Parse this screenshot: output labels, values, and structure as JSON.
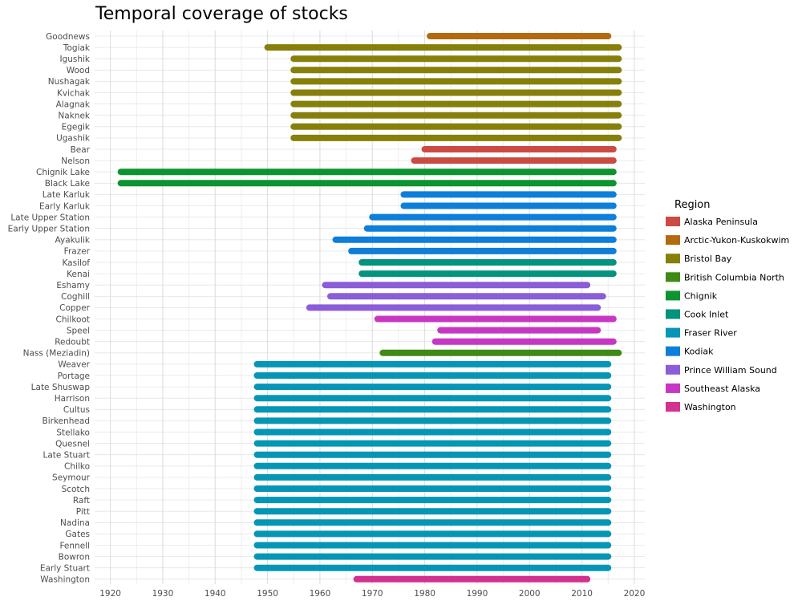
{
  "chart_data": {
    "type": "range-bar",
    "title": "Temporal coverage of stocks",
    "xlabel": "",
    "ylabel": "",
    "xlim": [
      1917,
      2022
    ],
    "x_ticks": [
      1920,
      1930,
      1940,
      1950,
      1960,
      1970,
      1980,
      1990,
      2000,
      2010,
      2020
    ],
    "grid": true,
    "legend": {
      "title": "Region",
      "placement": "right",
      "entries": [
        {
          "name": "Alaska Peninsula",
          "color": "#CB4B43"
        },
        {
          "name": "Arctic-Yukon-Kuskokwim",
          "color": "#B3690E"
        },
        {
          "name": "Bristol Bay",
          "color": "#86800A"
        },
        {
          "name": "British Columbia North",
          "color": "#3F8A17"
        },
        {
          "name": "Chignik",
          "color": "#0B942F"
        },
        {
          "name": "Cook Inlet",
          "color": "#03937F"
        },
        {
          "name": "Fraser River",
          "color": "#0596B5"
        },
        {
          "name": "Kodiak",
          "color": "#0D7FDB"
        },
        {
          "name": "Prince William Sound",
          "color": "#8B5DD9"
        },
        {
          "name": "Southeast Alaska",
          "color": "#C837C4"
        },
        {
          "name": "Washington",
          "color": "#D3318F"
        }
      ]
    },
    "stocks": [
      {
        "name": "Goodnews",
        "region": "Arctic-Yukon-Kuskokwim",
        "start": 1981,
        "end": 2015
      },
      {
        "name": "Togiak",
        "region": "Bristol Bay",
        "start": 1950,
        "end": 2017
      },
      {
        "name": "Igushik",
        "region": "Bristol Bay",
        "start": 1955,
        "end": 2017
      },
      {
        "name": "Wood",
        "region": "Bristol Bay",
        "start": 1955,
        "end": 2017
      },
      {
        "name": "Nushagak",
        "region": "Bristol Bay",
        "start": 1955,
        "end": 2017
      },
      {
        "name": "Kvichak",
        "region": "Bristol Bay",
        "start": 1955,
        "end": 2017
      },
      {
        "name": "Alagnak",
        "region": "Bristol Bay",
        "start": 1955,
        "end": 2017
      },
      {
        "name": "Naknek",
        "region": "Bristol Bay",
        "start": 1955,
        "end": 2017
      },
      {
        "name": "Egegik",
        "region": "Bristol Bay",
        "start": 1955,
        "end": 2017
      },
      {
        "name": "Ugashik",
        "region": "Bristol Bay",
        "start": 1955,
        "end": 2017
      },
      {
        "name": "Bear",
        "region": "Alaska Peninsula",
        "start": 1980,
        "end": 2016
      },
      {
        "name": "Nelson",
        "region": "Alaska Peninsula",
        "start": 1978,
        "end": 2016
      },
      {
        "name": "Chignik Lake",
        "region": "Chignik",
        "start": 1922,
        "end": 2016
      },
      {
        "name": "Black Lake",
        "region": "Chignik",
        "start": 1922,
        "end": 2016
      },
      {
        "name": "Late Karluk",
        "region": "Kodiak",
        "start": 1976,
        "end": 2016
      },
      {
        "name": "Early Karluk",
        "region": "Kodiak",
        "start": 1976,
        "end": 2016
      },
      {
        "name": "Late Upper Station",
        "region": "Kodiak",
        "start": 1970,
        "end": 2016
      },
      {
        "name": "Early Upper Station",
        "region": "Kodiak",
        "start": 1969,
        "end": 2016
      },
      {
        "name": "Ayakulik",
        "region": "Kodiak",
        "start": 1963,
        "end": 2016
      },
      {
        "name": "Frazer",
        "region": "Kodiak",
        "start": 1966,
        "end": 2016
      },
      {
        "name": "Kasilof",
        "region": "Cook Inlet",
        "start": 1968,
        "end": 2016
      },
      {
        "name": "Kenai",
        "region": "Cook Inlet",
        "start": 1968,
        "end": 2016
      },
      {
        "name": "Eshamy",
        "region": "Prince William Sound",
        "start": 1961,
        "end": 2011
      },
      {
        "name": "Coghill",
        "region": "Prince William Sound",
        "start": 1962,
        "end": 2014
      },
      {
        "name": "Copper",
        "region": "Prince William Sound",
        "start": 1958,
        "end": 2013
      },
      {
        "name": "Chilkoot",
        "region": "Southeast Alaska",
        "start": 1971,
        "end": 2016
      },
      {
        "name": "Speel",
        "region": "Southeast Alaska",
        "start": 1983,
        "end": 2013
      },
      {
        "name": "Redoubt",
        "region": "Southeast Alaska",
        "start": 1982,
        "end": 2016
      },
      {
        "name": "Nass (Meziadin)",
        "region": "British Columbia North",
        "start": 1972,
        "end": 2017
      },
      {
        "name": "Weaver",
        "region": "Fraser River",
        "start": 1948,
        "end": 2015
      },
      {
        "name": "Portage",
        "region": "Fraser River",
        "start": 1948,
        "end": 2015
      },
      {
        "name": "Late Shuswap",
        "region": "Fraser River",
        "start": 1948,
        "end": 2015
      },
      {
        "name": "Harrison",
        "region": "Fraser River",
        "start": 1948,
        "end": 2015
      },
      {
        "name": "Cultus",
        "region": "Fraser River",
        "start": 1948,
        "end": 2015
      },
      {
        "name": "Birkenhead",
        "region": "Fraser River",
        "start": 1948,
        "end": 2015
      },
      {
        "name": "Stellako",
        "region": "Fraser River",
        "start": 1948,
        "end": 2015
      },
      {
        "name": "Quesnel",
        "region": "Fraser River",
        "start": 1948,
        "end": 2015
      },
      {
        "name": "Late Stuart",
        "region": "Fraser River",
        "start": 1948,
        "end": 2015
      },
      {
        "name": "Chilko",
        "region": "Fraser River",
        "start": 1948,
        "end": 2015
      },
      {
        "name": "Seymour",
        "region": "Fraser River",
        "start": 1948,
        "end": 2015
      },
      {
        "name": "Scotch",
        "region": "Fraser River",
        "start": 1948,
        "end": 2015
      },
      {
        "name": "Raft",
        "region": "Fraser River",
        "start": 1948,
        "end": 2015
      },
      {
        "name": "Pitt",
        "region": "Fraser River",
        "start": 1948,
        "end": 2015
      },
      {
        "name": "Nadina",
        "region": "Fraser River",
        "start": 1948,
        "end": 2015
      },
      {
        "name": "Gates",
        "region": "Fraser River",
        "start": 1948,
        "end": 2015
      },
      {
        "name": "Fennell",
        "region": "Fraser River",
        "start": 1948,
        "end": 2015
      },
      {
        "name": "Bowron",
        "region": "Fraser River",
        "start": 1948,
        "end": 2015
      },
      {
        "name": "Early Stuart",
        "region": "Fraser River",
        "start": 1948,
        "end": 2015
      },
      {
        "name": "Washington",
        "region": "Washington",
        "start": 1967,
        "end": 2011
      }
    ]
  }
}
